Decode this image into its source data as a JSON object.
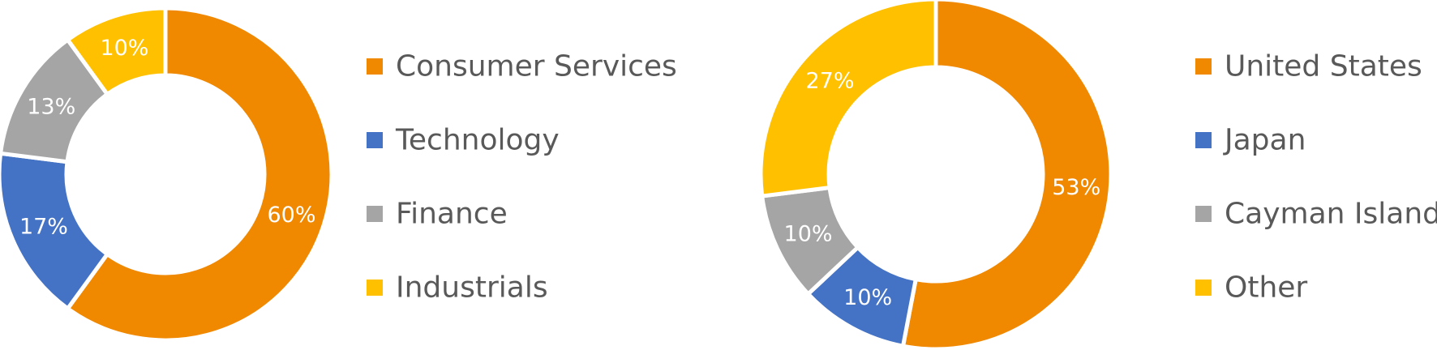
{
  "chart_data": [
    {
      "type": "pie",
      "variant": "donut",
      "title": "",
      "categories": [
        "Consumer Services",
        "Technology",
        "Finance",
        "Industrials"
      ],
      "values": [
        60,
        17,
        13,
        10
      ],
      "labels": [
        "60%",
        "17%",
        "13%",
        "10%"
      ],
      "colors": [
        "#F08800",
        "#4472C4",
        "#A5A5A5",
        "#FFC000"
      ],
      "legend_position": "right"
    },
    {
      "type": "pie",
      "variant": "donut",
      "title": "",
      "categories": [
        "United States",
        "Japan",
        "Cayman Islands",
        "Other"
      ],
      "values": [
        53,
        10,
        10,
        27
      ],
      "labels": [
        "53%",
        "10%",
        "10%",
        "27%"
      ],
      "colors": [
        "#F08800",
        "#4472C4",
        "#A5A5A5",
        "#FFC000"
      ],
      "legend_position": "right"
    }
  ]
}
